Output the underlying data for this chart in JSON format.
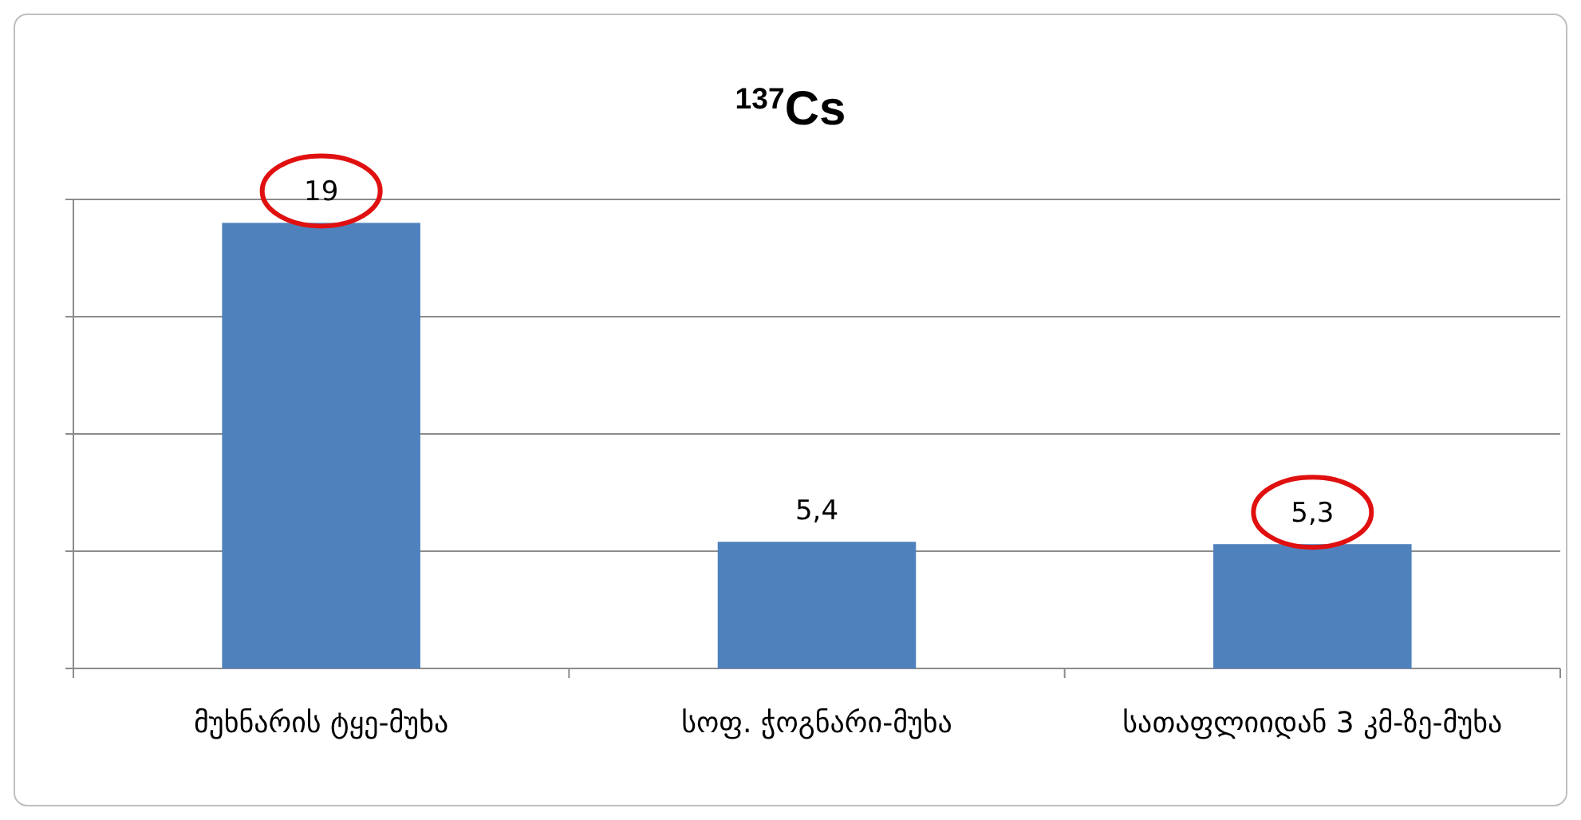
{
  "chart_data": {
    "type": "bar",
    "title": "$^{137}$Cs",
    "categories": [
      "მუხნარის ტყე-მუხა",
      "სოფ. ჭოგნარი-მუხა",
      "სათაფლიიდან 3 კმ-ზე-მუხა"
    ],
    "values": [
      19,
      5.4,
      5.3
    ],
    "value_labels": [
      "19",
      "5,4",
      "5,3"
    ],
    "color": "#4f81bd",
    "ylim": [
      0,
      20
    ],
    "yticks": [
      {
        "value": 0,
        "label": null
      },
      {
        "value": 5,
        "label": null
      },
      {
        "value": 10,
        "label": null
      },
      {
        "value": 15,
        "label": null
      },
      {
        "value": 20,
        "label": null
      }
    ],
    "grid": "y",
    "tick_labels": "x"
  }
}
